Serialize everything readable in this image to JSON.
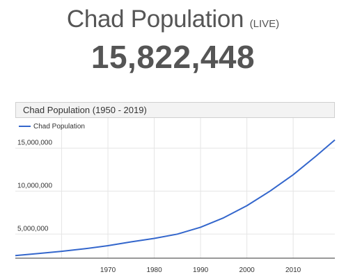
{
  "header": {
    "title": "Chad Population",
    "live_tag": "(LIVE)",
    "counter": "15,822,448"
  },
  "colors": {
    "heading": "#555555",
    "line": "#3366cc",
    "grid": "#e5e5e5",
    "axis": "#333333"
  },
  "chart_data": {
    "type": "line",
    "title": "Chad Population (1950 - 2019)",
    "xlabel": "",
    "ylabel": "",
    "legend": "top-left",
    "grid": true,
    "xlim": [
      1950,
      2019
    ],
    "ylim": [
      2200000,
      18500000
    ],
    "x_ticks": [
      1970,
      1980,
      1990,
      2000,
      2010
    ],
    "y_ticks": [
      5000000,
      10000000,
      15000000
    ],
    "y_tick_labels": [
      "5,000,000",
      "10,000,000",
      "15,000,000"
    ],
    "series": [
      {
        "name": "Chad Population",
        "x": [
          1950,
          1955,
          1960,
          1965,
          1970,
          1975,
          1980,
          1985,
          1990,
          1995,
          2000,
          2005,
          2010,
          2015,
          2019
        ],
        "values": [
          2500000,
          2750000,
          3000000,
          3300000,
          3650000,
          4100000,
          4500000,
          5000000,
          5800000,
          6900000,
          8300000,
          10000000,
          11900000,
          14100000,
          15950000
        ]
      }
    ]
  }
}
